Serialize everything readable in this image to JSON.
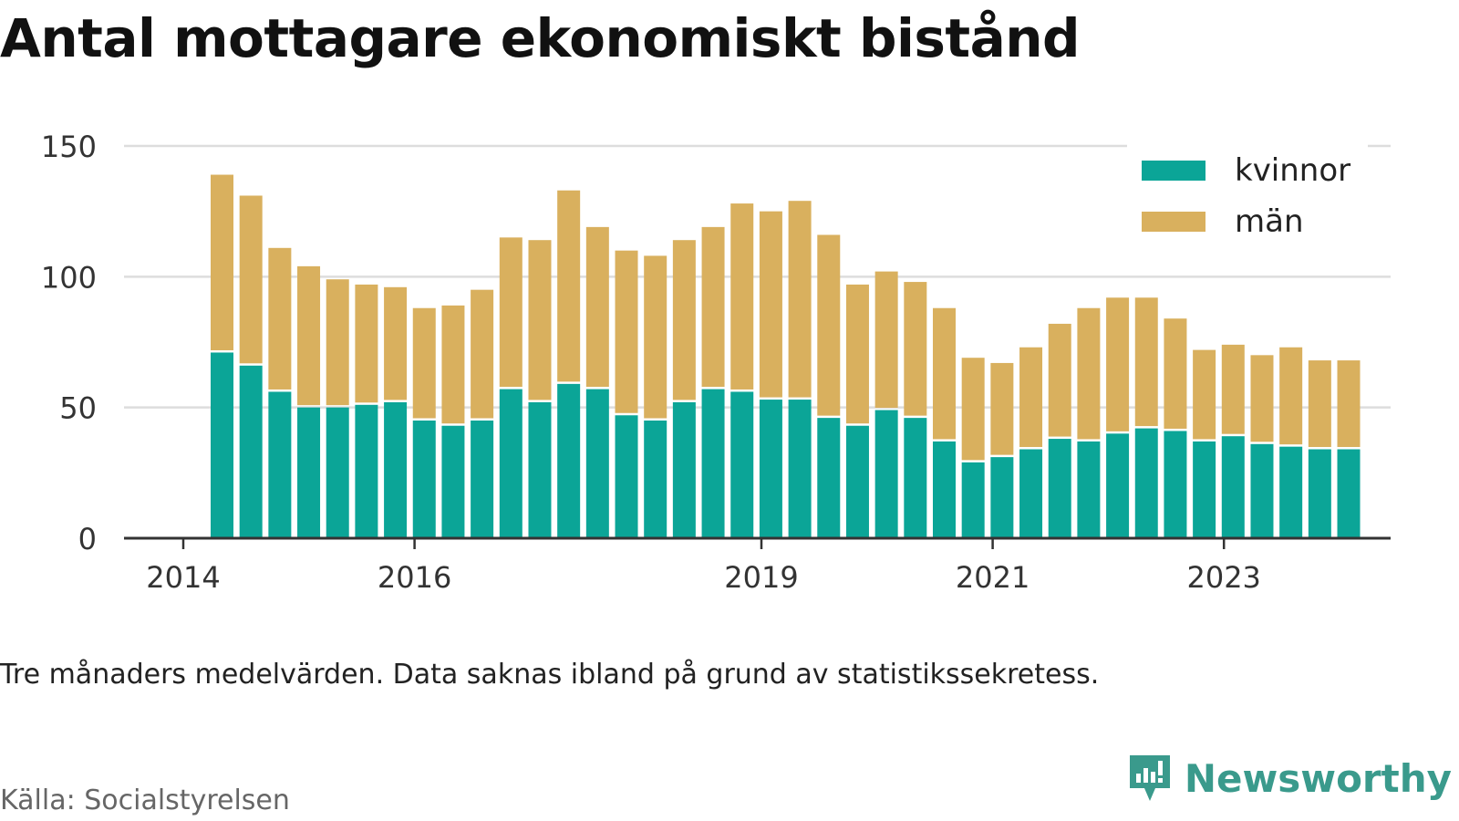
{
  "title": "Antal mottagare ekonomiskt bistånd",
  "note": "Tre månaders medelvärden. Data saknas ibland på grund av statistikssekretess.",
  "source": "Källa: Socialstyrelsen",
  "brand": {
    "name": "Newsworthy",
    "icon": "newsworthy-logo-icon",
    "color": "#3a9a8c"
  },
  "colors": {
    "kvinnor": "#0ba597",
    "man": "#d9b05e",
    "grid": "#dddddd",
    "axis": "#333333"
  },
  "chart_data": {
    "type": "bar",
    "stacked": true,
    "x_ticks": [
      "2014",
      "2016",
      "2019",
      "2021",
      "2023"
    ],
    "y_ticks": [
      "0",
      "50",
      "100",
      "150"
    ],
    "ylim": [
      0,
      150
    ],
    "grid": true,
    "legend_position": "top-right",
    "categories": [
      "2014-Q3",
      "2014-Q4",
      "2015-Q1",
      "2015-Q2",
      "2015-Q3",
      "2015-Q4",
      "2016-Q1",
      "2016-Q2",
      "2016-Q3",
      "2016-Q4",
      "2017-Q1",
      "2017-Q2",
      "2017-Q3",
      "2017-Q4",
      "2018-Q1",
      "2018-Q2",
      "2018-Q3",
      "2018-Q4",
      "2019-Q1",
      "2019-Q2",
      "2019-Q3",
      "2019-Q4",
      "2020-Q1",
      "2020-Q2",
      "2020-Q3",
      "2020-Q4",
      "2021-Q1",
      "2021-Q2",
      "2021-Q3",
      "2021-Q4",
      "2022-Q1",
      "2022-Q2",
      "2022-Q3",
      "2022-Q4",
      "2023-Q1",
      "2023-Q2",
      "2023-Q3",
      "2023-Q4",
      "2024-Q1",
      "2024-Q2"
    ],
    "series": [
      {
        "name": "kvinnor",
        "values": [
          71,
          66,
          56,
          50,
          50,
          51,
          52,
          45,
          43,
          45,
          57,
          52,
          59,
          57,
          47,
          45,
          52,
          57,
          56,
          53,
          53,
          46,
          43,
          49,
          46,
          37,
          29,
          31,
          34,
          38,
          37,
          40,
          42,
          41,
          37,
          39,
          36,
          35,
          34,
          34
        ]
      },
      {
        "name": "män",
        "values": [
          68,
          65,
          55,
          54,
          49,
          46,
          44,
          43,
          46,
          50,
          58,
          62,
          74,
          62,
          63,
          63,
          62,
          62,
          72,
          72,
          76,
          70,
          54,
          53,
          52,
          51,
          40,
          36,
          39,
          44,
          51,
          52,
          50,
          43,
          35,
          35,
          34,
          38,
          34,
          34
        ]
      }
    ]
  }
}
